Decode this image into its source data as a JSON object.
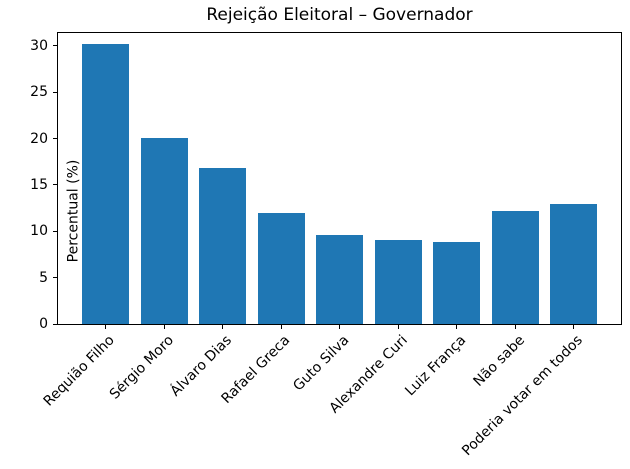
{
  "chart_data": {
    "type": "bar",
    "title": "Rejeição Eleitoral – Governador",
    "ylabel": "Percentual (%)",
    "xlabel": "",
    "categories": [
      "Requião Filho",
      "Sérgio Moro",
      "Álvaro Dias",
      "Rafael Greca",
      "Guto Silva",
      "Alexandre Curi",
      "Luiz França",
      "Não sabe",
      "Poderia votar em todos"
    ],
    "values": [
      30.2,
      20.1,
      16.8,
      12.0,
      9.6,
      9.1,
      8.9,
      12.2,
      12.9
    ],
    "yticks": [
      0,
      5,
      10,
      15,
      20,
      25,
      30
    ],
    "ylim": [
      0,
      31.4
    ],
    "x_tick_rotation_deg": 45,
    "grid": false,
    "legend": null,
    "bar_color": "#1f77b4",
    "axis_color": "#000000",
    "background_color": "#ffffff"
  }
}
